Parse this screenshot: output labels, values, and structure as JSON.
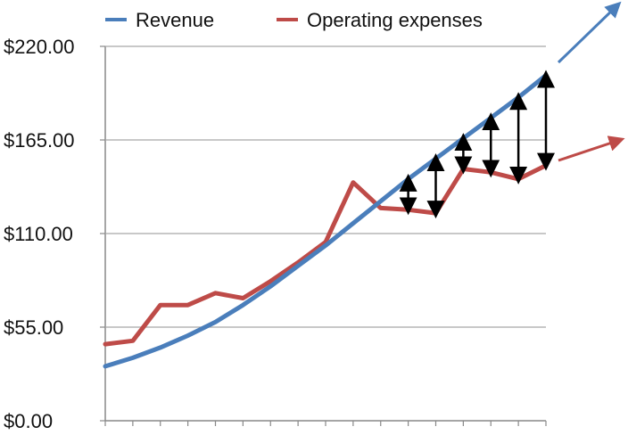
{
  "chart_data": {
    "type": "line",
    "title": "",
    "xlabel": "",
    "ylabel": "",
    "x": [
      1,
      2,
      3,
      4,
      5,
      6,
      7,
      8,
      9,
      10,
      11,
      12,
      13,
      14,
      15,
      16,
      17
    ],
    "ylim": [
      0,
      220
    ],
    "yticks": [
      0,
      55,
      110,
      165,
      220
    ],
    "ytick_labels": [
      "$0.00",
      "$55.00",
      "$110.00",
      "$165.00",
      "$220.00"
    ],
    "grid": true,
    "legend_position": "top",
    "series": [
      {
        "name": "Revenue",
        "color": "#4a7ebb",
        "values": [
          32,
          37,
          43,
          50,
          58,
          68,
          79,
          91,
          103,
          116,
          129,
          142,
          154,
          166,
          178,
          190,
          203
        ]
      },
      {
        "name": "Operating expenses",
        "color": "#be4b48",
        "values": [
          45,
          47,
          68,
          68,
          75,
          72,
          82,
          93,
          105,
          140,
          125,
          124,
          122,
          148,
          146,
          142,
          150
        ]
      }
    ],
    "gap_arrow_indices": [
      11,
      12,
      13,
      14,
      15,
      16
    ],
    "annotations": [
      {
        "type": "arrow",
        "color": "#4a7ebb",
        "meaning": "revenue trend continues upward"
      },
      {
        "type": "arrow",
        "color": "#be4b48",
        "meaning": "expenses trend continues with lower slope"
      }
    ]
  }
}
